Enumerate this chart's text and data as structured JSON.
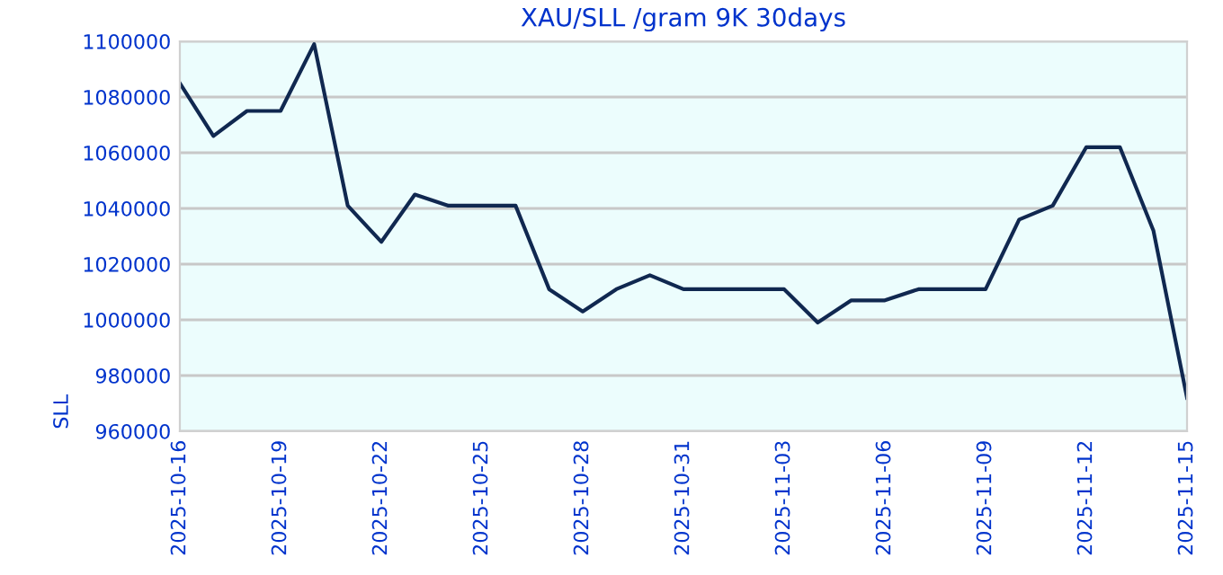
{
  "chart_data": {
    "type": "line",
    "title": "XAU/SLL /gram 9K 30days",
    "ylabel": "SLL",
    "x": [
      "2025-10-16",
      "2025-10-17",
      "2025-10-18",
      "2025-10-19",
      "2025-10-20",
      "2025-10-21",
      "2025-10-22",
      "2025-10-23",
      "2025-10-24",
      "2025-10-25",
      "2025-10-26",
      "2025-10-27",
      "2025-10-28",
      "2025-10-29",
      "2025-10-30",
      "2025-10-31",
      "2025-11-01",
      "2025-11-02",
      "2025-11-03",
      "2025-11-04",
      "2025-11-05",
      "2025-11-06",
      "2025-11-07",
      "2025-11-08",
      "2025-11-09",
      "2025-11-10",
      "2025-11-11",
      "2025-11-12",
      "2025-11-13",
      "2025-11-14",
      "2025-11-15"
    ],
    "series": [
      {
        "color": "#102850",
        "values": [
          1085000,
          1066000,
          1075000,
          1075000,
          1099000,
          1041000,
          1028000,
          1045000,
          1041000,
          1041000,
          1041000,
          1011000,
          1003000,
          1011000,
          1016000,
          1011000,
          1011000,
          1011000,
          1011000,
          999000,
          1007000,
          1007000,
          1011000,
          1011000,
          1011000,
          1036000,
          1041000,
          1062000,
          1062000,
          1032000,
          972000
        ]
      }
    ],
    "xlim": [
      "2025-10-16",
      "2025-11-15"
    ],
    "xticks": [
      "2025-10-16",
      "2025-10-19",
      "2025-10-22",
      "2025-10-25",
      "2025-10-28",
      "2025-10-31",
      "2025-11-03",
      "2025-11-06",
      "2025-11-09",
      "2025-11-12",
      "2025-11-15"
    ],
    "ylim": [
      960000,
      1100000
    ],
    "yticks": [
      960000,
      980000,
      1000000,
      1020000,
      1040000,
      1060000,
      1080000,
      1100000
    ],
    "grid": "y",
    "legend": false,
    "marker": "none",
    "line_style": "solid"
  }
}
